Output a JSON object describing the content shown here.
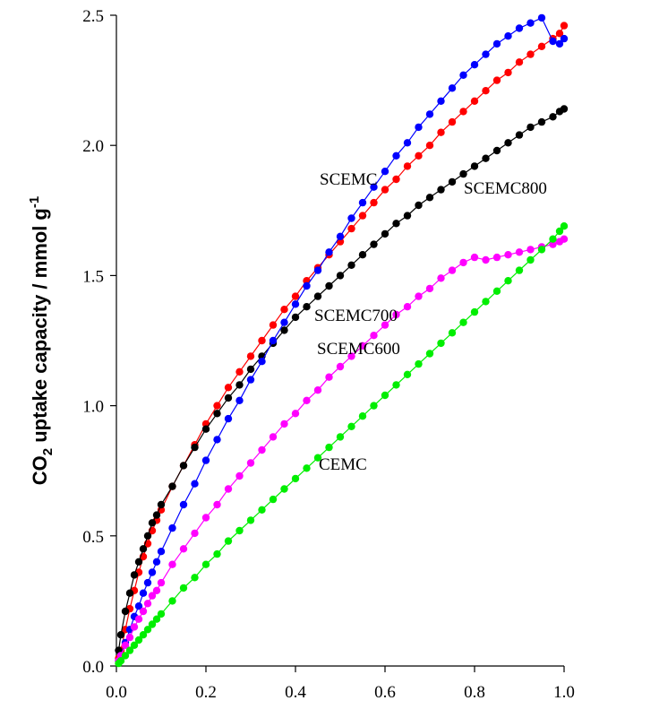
{
  "chart_data": {
    "type": "line",
    "xlabel": "",
    "ylabel_parts": [
      "CO",
      "2",
      " uptake capacity / mmol g",
      "-1"
    ],
    "xlim": [
      0,
      1.0
    ],
    "ylim": [
      0,
      2.5
    ],
    "x_ticks": [
      "0.0",
      "0.2",
      "0.4",
      "0.6",
      "0.8",
      "1.0"
    ],
    "y_ticks": [
      "0.0",
      "0.5",
      "1.0",
      "1.5",
      "2.0",
      "2.5"
    ],
    "grid": false,
    "series": [
      {
        "name": "SCEMC",
        "color": "#ff0000",
        "x": [
          0.005,
          0.01,
          0.02,
          0.03,
          0.04,
          0.05,
          0.06,
          0.07,
          0.08,
          0.09,
          0.1,
          0.125,
          0.15,
          0.175,
          0.2,
          0.225,
          0.25,
          0.275,
          0.3,
          0.325,
          0.35,
          0.375,
          0.4,
          0.425,
          0.45,
          0.475,
          0.5,
          0.525,
          0.55,
          0.575,
          0.6,
          0.625,
          0.65,
          0.675,
          0.7,
          0.725,
          0.75,
          0.775,
          0.8,
          0.825,
          0.85,
          0.875,
          0.9,
          0.925,
          0.95,
          0.975,
          0.99,
          1.0
        ],
        "y": [
          0.03,
          0.06,
          0.14,
          0.22,
          0.29,
          0.36,
          0.42,
          0.47,
          0.52,
          0.56,
          0.6,
          0.69,
          0.77,
          0.85,
          0.93,
          1.0,
          1.07,
          1.13,
          1.19,
          1.25,
          1.31,
          1.37,
          1.42,
          1.48,
          1.53,
          1.58,
          1.63,
          1.68,
          1.73,
          1.78,
          1.83,
          1.87,
          1.92,
          1.96,
          2.0,
          2.05,
          2.09,
          2.13,
          2.17,
          2.21,
          2.25,
          2.28,
          2.32,
          2.35,
          2.38,
          2.41,
          2.43,
          2.46
        ]
      },
      {
        "name": "SCEMC800",
        "color": "#000000",
        "x": [
          0.005,
          0.01,
          0.02,
          0.03,
          0.04,
          0.05,
          0.06,
          0.07,
          0.08,
          0.09,
          0.1,
          0.125,
          0.15,
          0.175,
          0.2,
          0.225,
          0.25,
          0.275,
          0.3,
          0.325,
          0.35,
          0.375,
          0.4,
          0.425,
          0.45,
          0.475,
          0.5,
          0.525,
          0.55,
          0.575,
          0.6,
          0.625,
          0.65,
          0.675,
          0.7,
          0.725,
          0.75,
          0.775,
          0.8,
          0.825,
          0.85,
          0.875,
          0.9,
          0.925,
          0.95,
          0.975,
          0.99,
          1.0
        ],
        "y": [
          0.06,
          0.12,
          0.21,
          0.28,
          0.35,
          0.4,
          0.45,
          0.5,
          0.55,
          0.58,
          0.62,
          0.69,
          0.77,
          0.84,
          0.91,
          0.97,
          1.03,
          1.08,
          1.14,
          1.19,
          1.24,
          1.29,
          1.34,
          1.38,
          1.42,
          1.46,
          1.5,
          1.54,
          1.58,
          1.62,
          1.66,
          1.7,
          1.73,
          1.77,
          1.8,
          1.83,
          1.86,
          1.89,
          1.92,
          1.95,
          1.98,
          2.01,
          2.04,
          2.07,
          2.09,
          2.11,
          2.13,
          2.14
        ]
      },
      {
        "name": "SCEMC700",
        "color": "#0000ff",
        "x": [
          0.005,
          0.01,
          0.02,
          0.03,
          0.04,
          0.05,
          0.06,
          0.07,
          0.08,
          0.09,
          0.1,
          0.125,
          0.15,
          0.175,
          0.2,
          0.225,
          0.25,
          0.275,
          0.3,
          0.325,
          0.35,
          0.375,
          0.4,
          0.425,
          0.45,
          0.475,
          0.5,
          0.525,
          0.55,
          0.575,
          0.6,
          0.625,
          0.65,
          0.675,
          0.7,
          0.725,
          0.75,
          0.775,
          0.8,
          0.825,
          0.85,
          0.875,
          0.9,
          0.925,
          0.95,
          0.975,
          0.99,
          1.0
        ],
        "y": [
          0.02,
          0.04,
          0.09,
          0.14,
          0.19,
          0.23,
          0.28,
          0.32,
          0.36,
          0.4,
          0.44,
          0.53,
          0.62,
          0.7,
          0.79,
          0.87,
          0.95,
          1.02,
          1.1,
          1.17,
          1.25,
          1.32,
          1.39,
          1.46,
          1.52,
          1.59,
          1.65,
          1.72,
          1.78,
          1.84,
          1.9,
          1.96,
          2.01,
          2.07,
          2.12,
          2.17,
          2.22,
          2.27,
          2.31,
          2.35,
          2.39,
          2.42,
          2.45,
          2.47,
          2.49,
          2.4,
          2.39,
          2.41
        ]
      },
      {
        "name": "SCEMC600",
        "color": "#ff00ff",
        "x": [
          0.005,
          0.01,
          0.02,
          0.03,
          0.04,
          0.05,
          0.06,
          0.07,
          0.08,
          0.09,
          0.1,
          0.125,
          0.15,
          0.175,
          0.2,
          0.225,
          0.25,
          0.275,
          0.3,
          0.325,
          0.35,
          0.375,
          0.4,
          0.425,
          0.45,
          0.475,
          0.5,
          0.525,
          0.55,
          0.575,
          0.6,
          0.625,
          0.65,
          0.675,
          0.7,
          0.725,
          0.75,
          0.775,
          0.8,
          0.825,
          0.85,
          0.875,
          0.9,
          0.925,
          0.95,
          0.975,
          0.99,
          1.0
        ],
        "y": [
          0.02,
          0.04,
          0.08,
          0.11,
          0.15,
          0.18,
          0.21,
          0.24,
          0.27,
          0.29,
          0.32,
          0.39,
          0.45,
          0.51,
          0.57,
          0.62,
          0.68,
          0.73,
          0.78,
          0.83,
          0.88,
          0.93,
          0.97,
          1.02,
          1.06,
          1.11,
          1.15,
          1.19,
          1.23,
          1.27,
          1.31,
          1.35,
          1.38,
          1.42,
          1.45,
          1.49,
          1.52,
          1.55,
          1.57,
          1.56,
          1.57,
          1.58,
          1.59,
          1.6,
          1.61,
          1.62,
          1.63,
          1.64
        ]
      },
      {
        "name": "CEMC",
        "color": "#00ee00",
        "x": [
          0.005,
          0.01,
          0.02,
          0.03,
          0.04,
          0.05,
          0.06,
          0.07,
          0.08,
          0.09,
          0.1,
          0.125,
          0.15,
          0.175,
          0.2,
          0.225,
          0.25,
          0.275,
          0.3,
          0.325,
          0.35,
          0.375,
          0.4,
          0.425,
          0.45,
          0.475,
          0.5,
          0.525,
          0.55,
          0.575,
          0.6,
          0.625,
          0.65,
          0.675,
          0.7,
          0.725,
          0.75,
          0.775,
          0.8,
          0.825,
          0.85,
          0.875,
          0.9,
          0.925,
          0.95,
          0.975,
          0.99,
          1.0
        ],
        "y": [
          0.01,
          0.02,
          0.04,
          0.06,
          0.08,
          0.1,
          0.12,
          0.14,
          0.16,
          0.18,
          0.2,
          0.25,
          0.3,
          0.34,
          0.39,
          0.43,
          0.48,
          0.52,
          0.56,
          0.6,
          0.64,
          0.68,
          0.72,
          0.76,
          0.8,
          0.84,
          0.88,
          0.92,
          0.96,
          1.0,
          1.04,
          1.08,
          1.12,
          1.16,
          1.2,
          1.24,
          1.28,
          1.32,
          1.36,
          1.4,
          1.44,
          1.48,
          1.52,
          1.56,
          1.6,
          1.64,
          1.67,
          1.69
        ]
      }
    ],
    "labels": [
      {
        "text": "SCEMC",
        "series": "SCEMC"
      },
      {
        "text": "SCEMC800",
        "series": "SCEMC800"
      },
      {
        "text": "SCEMC700",
        "series": "SCEMC700"
      },
      {
        "text": "SCEMC600",
        "series": "SCEMC600"
      },
      {
        "text": "CEMC",
        "series": "CEMC"
      }
    ]
  }
}
